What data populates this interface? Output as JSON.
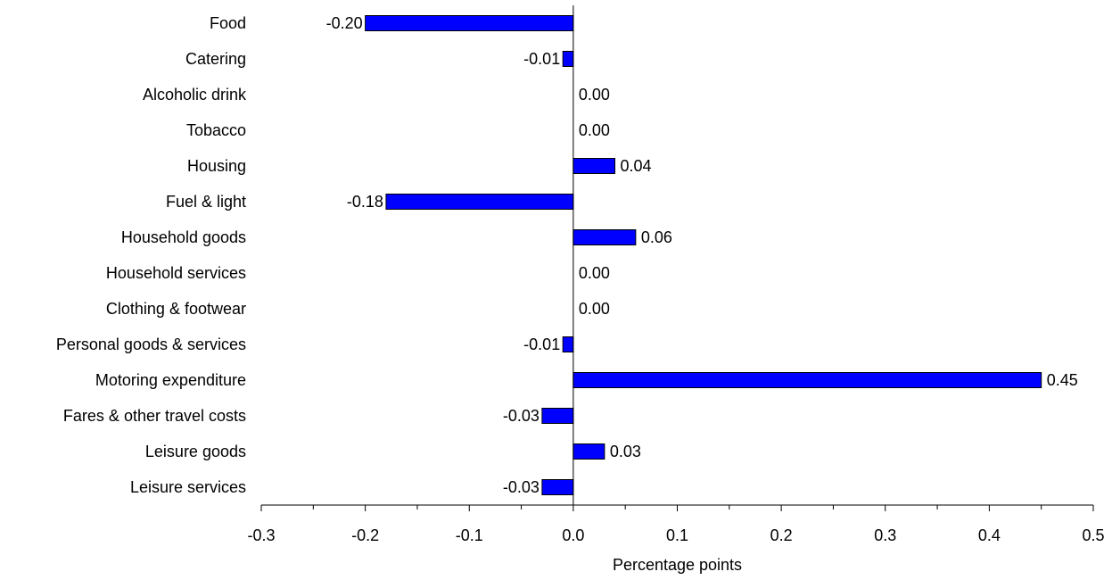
{
  "chart_data": {
    "type": "bar",
    "orientation": "horizontal",
    "categories": [
      "Food",
      "Catering",
      "Alcoholic drink",
      "Tobacco",
      "Housing",
      "Fuel & light",
      "Household goods",
      "Household services",
      "Clothing & footwear",
      "Personal goods & services",
      "Motoring expenditure",
      "Fares & other travel costs",
      "Leisure goods",
      "Leisure services"
    ],
    "values": [
      -0.2,
      -0.01,
      0.0,
      0.0,
      0.04,
      -0.18,
      0.06,
      0.0,
      0.0,
      -0.01,
      0.45,
      -0.03,
      0.03,
      -0.03
    ],
    "value_labels": [
      "-0.20",
      "-0.01",
      "0.00",
      "0.00",
      "0.04",
      "-0.18",
      "0.06",
      "0.00",
      "0.00",
      "-0.01",
      "0.45",
      "-0.03",
      "0.03",
      "-0.03"
    ],
    "xlim": [
      -0.3,
      0.5
    ],
    "xticks": [
      "-0.3",
      "-0.2",
      "-0.1",
      "0.0",
      "0.1",
      "0.2",
      "0.3",
      "0.4",
      "0.5"
    ],
    "xlabel": "Percentage points",
    "ylabel": "",
    "title": "",
    "grid": false,
    "legend": "none",
    "bar_color": "#0000ff"
  }
}
